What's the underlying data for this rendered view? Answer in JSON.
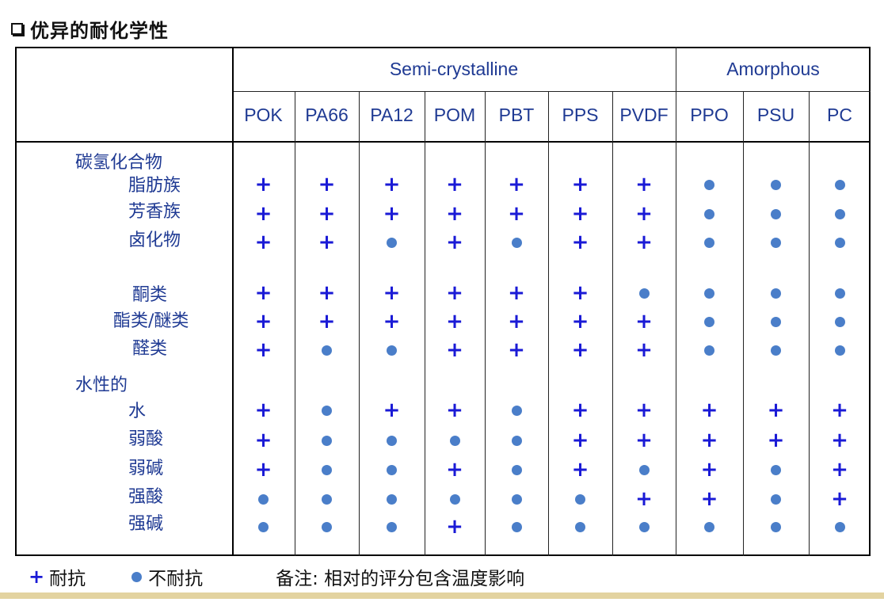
{
  "title": "优异的耐化学性",
  "groups": [
    {
      "label": "Semi-crystalline"
    },
    {
      "label": "Amorphous"
    }
  ],
  "columns": [
    "POK",
    "PA66",
    "PA12",
    "POM",
    "PBT",
    "PPS",
    "PVDF",
    "PPO",
    "PSU",
    "PC"
  ],
  "rows": [
    {
      "label": "碳氢化合物",
      "level": 0,
      "marks": null
    },
    {
      "label": "脂肪族",
      "level": 1,
      "marks": [
        "+",
        "+",
        "+",
        "+",
        "+",
        "+",
        "+",
        "o",
        "o",
        "o"
      ]
    },
    {
      "label": "芳香族",
      "level": 1,
      "marks": [
        "+",
        "+",
        "+",
        "+",
        "+",
        "+",
        "+",
        "o",
        "o",
        "o"
      ]
    },
    {
      "label": "卤化物",
      "level": 1,
      "marks": [
        "+",
        "+",
        "o",
        "+",
        "o",
        "+",
        "+",
        "o",
        "o",
        "o"
      ]
    },
    {
      "label": "酮类",
      "level": 1,
      "marks": [
        "+",
        "+",
        "+",
        "+",
        "+",
        "+",
        "o",
        "o",
        "o",
        "o"
      ]
    },
    {
      "label": "酯类/醚类",
      "level": 1,
      "marks": [
        "+",
        "+",
        "+",
        "+",
        "+",
        "+",
        "+",
        "o",
        "o",
        "o"
      ]
    },
    {
      "label": "醛类",
      "level": 1,
      "marks": [
        "+",
        "o",
        "o",
        "+",
        "+",
        "+",
        "+",
        "o",
        "o",
        "o"
      ]
    },
    {
      "label": "水性的",
      "level": 0,
      "marks": null
    },
    {
      "label": "水",
      "level": 1,
      "marks": [
        "+",
        "o",
        "+",
        "+",
        "o",
        "+",
        "+",
        "+",
        "+",
        "+"
      ]
    },
    {
      "label": "弱酸",
      "level": 1,
      "marks": [
        "+",
        "o",
        "o",
        "o",
        "o",
        "+",
        "+",
        "+",
        "+",
        "+"
      ]
    },
    {
      "label": "弱碱",
      "level": 1,
      "marks": [
        "+",
        "o",
        "o",
        "+",
        "o",
        "+",
        "o",
        "+",
        "o",
        "+"
      ]
    },
    {
      "label": "强酸",
      "level": 1,
      "marks": [
        "o",
        "o",
        "o",
        "o",
        "o",
        "o",
        "+",
        "+",
        "o",
        "+"
      ]
    },
    {
      "label": "强碱",
      "level": 1,
      "marks": [
        "o",
        "o",
        "o",
        "+",
        "o",
        "o",
        "o",
        "o",
        "o",
        "o"
      ]
    }
  ],
  "legend": {
    "resistant_symbol": "+",
    "resistant_label": "耐抗",
    "not_resistant_label": "不耐抗",
    "note": "备注: 相对的评分包含温度影响"
  }
}
